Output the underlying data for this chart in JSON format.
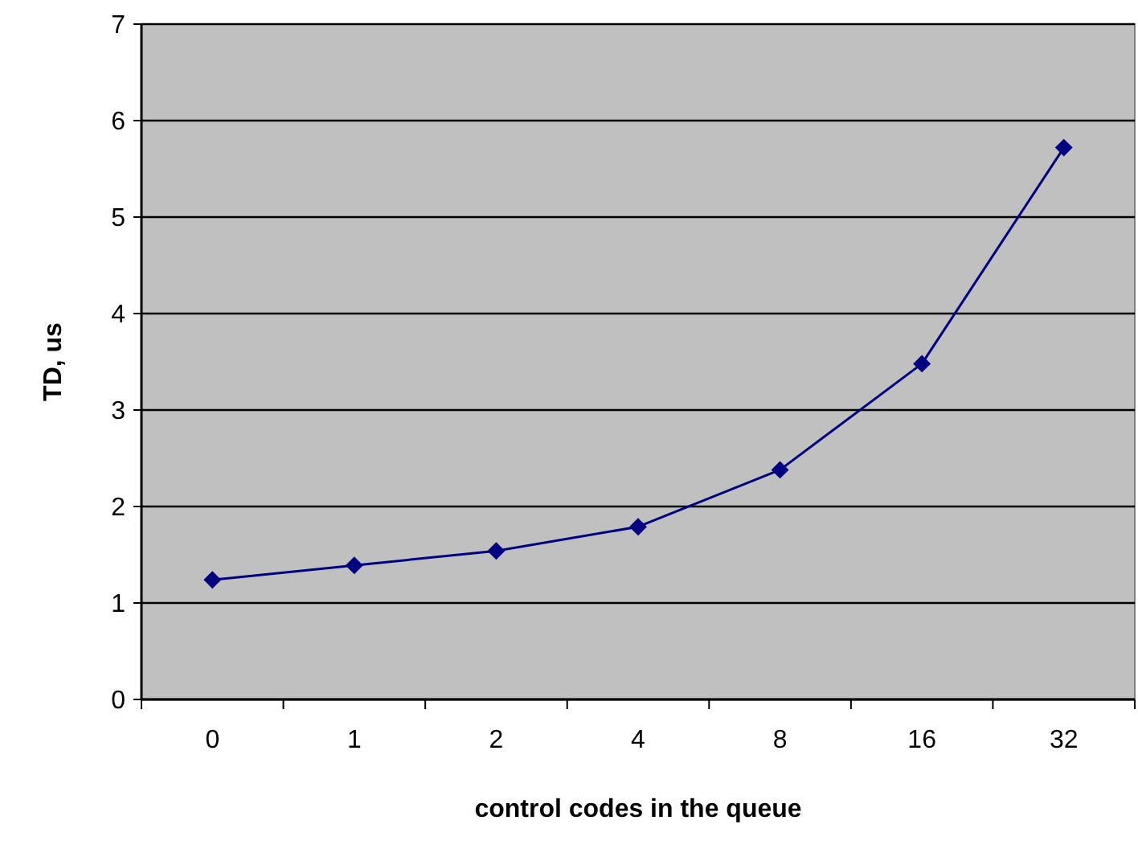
{
  "chart_data": {
    "type": "line",
    "xlabel": "control codes in the queue",
    "ylabel": "TD, us",
    "categories": [
      "0",
      "1",
      "2",
      "4",
      "8",
      "16",
      "32"
    ],
    "series": [
      {
        "color": "#000080",
        "values": [
          1.24,
          1.39,
          1.54,
          1.79,
          2.38,
          3.48,
          5.72
        ]
      }
    ],
    "ylim": [
      0,
      7
    ],
    "yticks": [
      0,
      1,
      2,
      3,
      4,
      5,
      6,
      7
    ],
    "grid": "y",
    "marker": "diamond"
  }
}
